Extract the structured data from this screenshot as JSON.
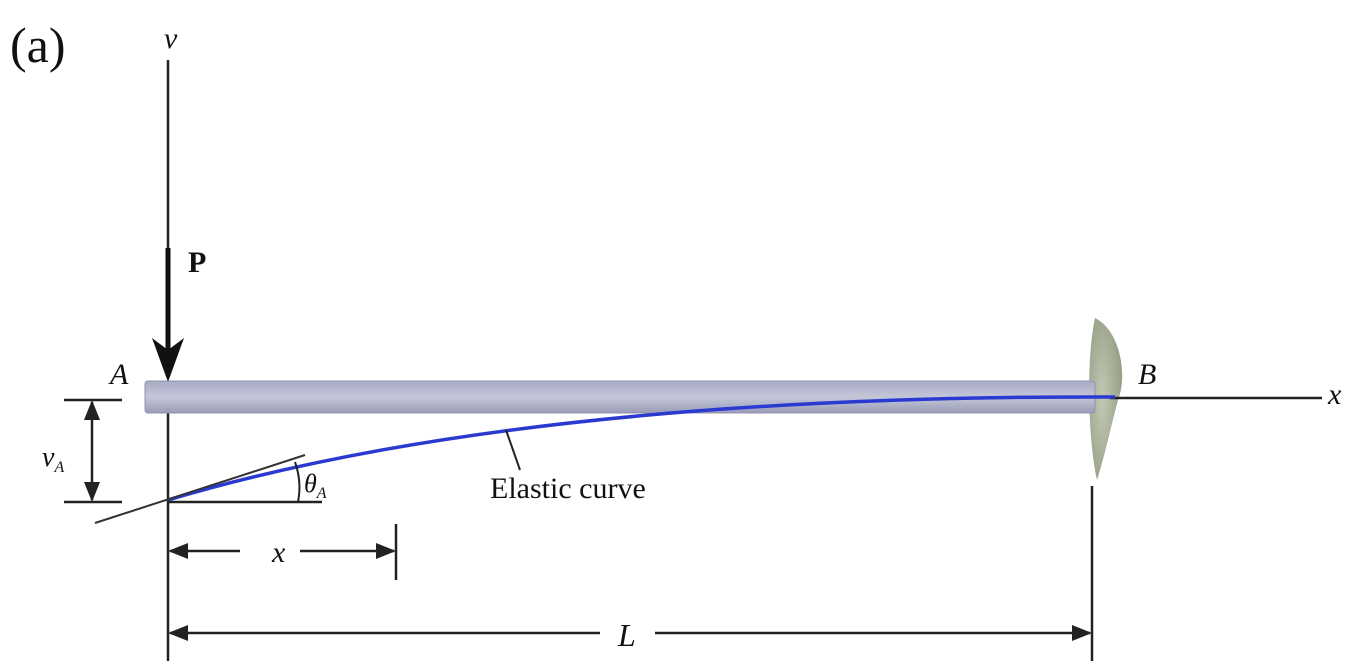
{
  "panel_label": "(a)",
  "labels": {
    "v_axis": "v",
    "x_axis": "x",
    "load": "P",
    "end_a": "A",
    "end_b": "B",
    "deflection": {
      "symbol": "v",
      "subscript": "A"
    },
    "slope": {
      "symbol": "θ",
      "subscript": "A"
    },
    "curve": "Elastic curve",
    "position": "x",
    "length": "L"
  }
}
